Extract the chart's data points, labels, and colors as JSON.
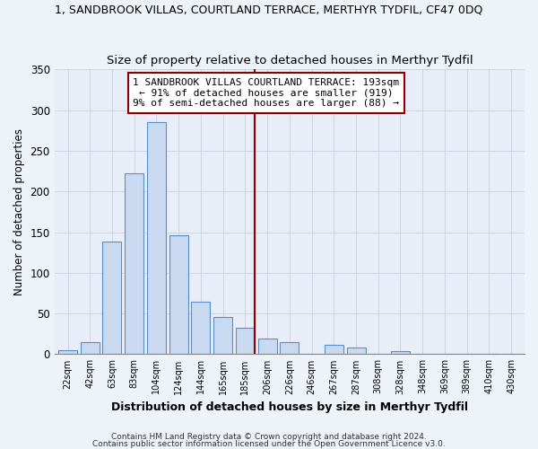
{
  "title": "1, SANDBROOK VILLAS, COURTLAND TERRACE, MERTHYR TYDFIL, CF47 0DQ",
  "subtitle": "Size of property relative to detached houses in Merthyr Tydfil",
  "xlabel": "Distribution of detached houses by size in Merthyr Tydfil",
  "ylabel": "Number of detached properties",
  "bar_labels": [
    "22sqm",
    "42sqm",
    "63sqm",
    "83sqm",
    "104sqm",
    "124sqm",
    "144sqm",
    "165sqm",
    "185sqm",
    "206sqm",
    "226sqm",
    "246sqm",
    "267sqm",
    "287sqm",
    "308sqm",
    "328sqm",
    "348sqm",
    "369sqm",
    "389sqm",
    "410sqm",
    "430sqm"
  ],
  "bar_values": [
    5,
    15,
    138,
    222,
    285,
    146,
    64,
    46,
    32,
    19,
    15,
    0,
    11,
    8,
    0,
    4,
    0,
    1,
    0,
    0,
    1
  ],
  "bar_color": "#c9d9f0",
  "bar_edge_color": "#5b8ec4",
  "vline_x": 8.43,
  "vline_color": "#8b0000",
  "annotation_text": "1 SANDBROOK VILLAS COURTLAND TERRACE: 193sqm\n← 91% of detached houses are smaller (919)\n9% of semi-detached houses are larger (88) →",
  "ylim": [
    0,
    350
  ],
  "yticks": [
    0,
    50,
    100,
    150,
    200,
    250,
    300,
    350
  ],
  "footnote1": "Contains HM Land Registry data © Crown copyright and database right 2024.",
  "footnote2": "Contains public sector information licensed under the Open Government Licence v3.0.",
  "bg_color": "#eef2f9",
  "plot_bg_color": "#e8eef8",
  "grid_color": "#c8d0e0",
  "ann_box_edge_color": "#8b0000",
  "title_fontsize": 9.0,
  "subtitle_fontsize": 9.5
}
